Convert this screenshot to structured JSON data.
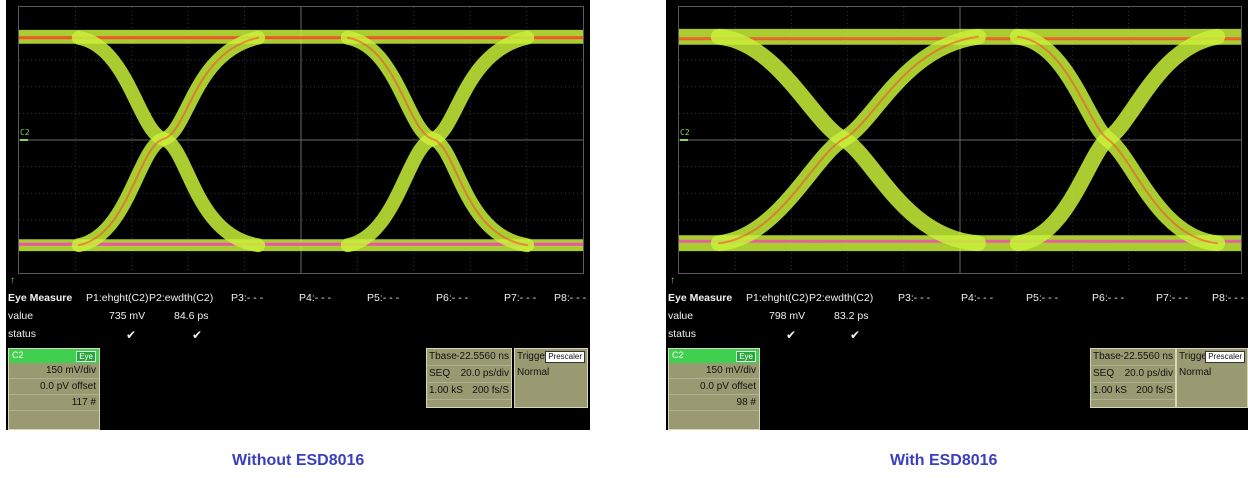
{
  "panels": [
    {
      "id": "left",
      "caption": "Without ESD8016",
      "channel_marker": "C2",
      "measure": {
        "title": "Eye Measure",
        "params": [
          "P1:ehght(C2)",
          "P2:ewdth(C2)",
          "P3:- - -",
          "P4:- - -",
          "P5:- - -",
          "P6:- - -",
          "P7:- - -",
          "P8:- - -"
        ],
        "value_label": "value",
        "values": [
          "735 mV",
          "84.6 ps"
        ],
        "status_label": "status",
        "status": [
          "✔",
          "✔"
        ]
      },
      "channel": {
        "name": "C2",
        "tag": "Eye",
        "scale": "150 mV/div",
        "offset": "0.0 pV offset",
        "count": "117 #"
      },
      "timebase": {
        "label": "Tbase",
        "delay": "-22.5560 ns",
        "mode": "SEQ",
        "rate": "20.0 ps/div",
        "samples": "1.00 kS",
        "resolution": "200 fs/S"
      },
      "trigger": {
        "label": "Trigger",
        "badge": "Prescaler",
        "mode": "Normal"
      }
    },
    {
      "id": "right",
      "caption": "With ESD8016",
      "channel_marker": "C2",
      "measure": {
        "title": "Eye Measure",
        "params": [
          "P1:ehght(C2)",
          "P2:ewdth(C2)",
          "P3:- - -",
          "P4:- - -",
          "P5:- - -",
          "P6:- - -",
          "P7:- - -",
          "P8:- - -"
        ],
        "value_label": "value",
        "values": [
          "798 mV",
          "83.2 ps"
        ],
        "status_label": "status",
        "status": [
          "✔",
          "✔"
        ]
      },
      "channel": {
        "name": "C2",
        "tag": "Eye",
        "scale": "150 mV/div",
        "offset": "0.0 pV offset",
        "count": "98 #"
      },
      "timebase": {
        "label": "Tbase",
        "delay": "-22.5560 ns",
        "mode": "SEQ",
        "rate": "20.0 ps/div",
        "samples": "1.00 kS",
        "resolution": "200 fs/S"
      },
      "trigger": {
        "label": "Trigger",
        "badge": "Prescaler",
        "mode": "Normal"
      }
    }
  ],
  "colors": {
    "trace": "#c8f03a",
    "trace_hot": "#ff3a2a",
    "trace_peak": "#ff33cc",
    "caption": "#3a3fbf",
    "grid": "#5a5a5a"
  }
}
